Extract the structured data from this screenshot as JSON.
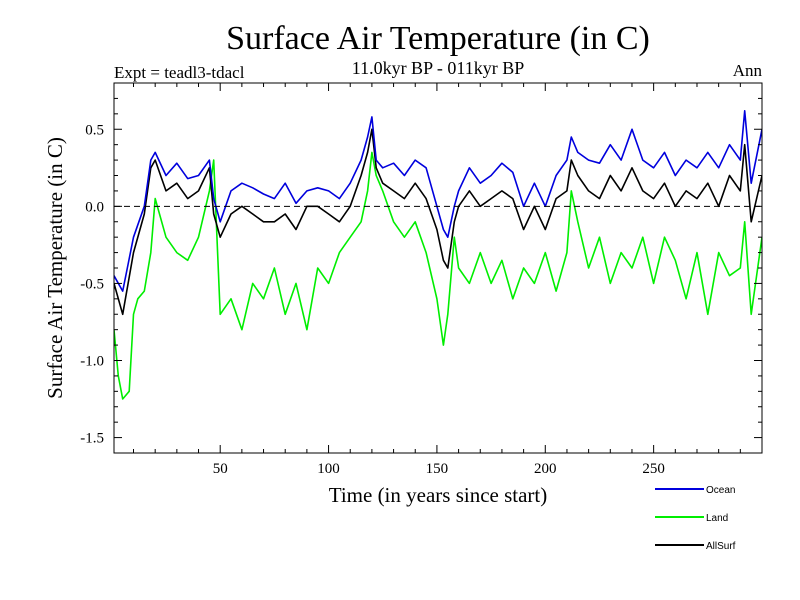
{
  "chart_data": {
    "type": "line",
    "title": "Surface Air Temperature (in C)",
    "subtitle": "11.0kyr BP - 011kyr BP",
    "left_label": "Expt = teadl3-tdacl",
    "right_label": "Ann",
    "xlabel": "Time (in years since start)",
    "ylabel": "Surface Air Temperature (in C)",
    "xlim": [
      1,
      300
    ],
    "ylim": [
      -1.6,
      0.8
    ],
    "xticks": [
      50,
      100,
      150,
      200,
      250
    ],
    "xtick_labels": [
      "50",
      "100",
      "150",
      "200",
      "250"
    ],
    "yticks": [
      0.5,
      0.0,
      -0.5,
      -1.0,
      -1.5
    ],
    "ytick_labels": [
      "0.5",
      "0.0",
      "-0.5",
      "-1.0",
      "-1.5"
    ],
    "reference_line": 0.0,
    "legend_placement": "bottom-right",
    "series": [
      {
        "name": "Ocean",
        "color": "#0000dd",
        "x": [
          1,
          5,
          10,
          15,
          18,
          20,
          25,
          30,
          35,
          40,
          45,
          47,
          50,
          55,
          60,
          65,
          70,
          75,
          80,
          85,
          90,
          95,
          100,
          105,
          110,
          115,
          118,
          120,
          122,
          125,
          130,
          135,
          140,
          145,
          150,
          153,
          155,
          158,
          160,
          165,
          170,
          175,
          180,
          185,
          190,
          195,
          200,
          205,
          210,
          212,
          215,
          220,
          225,
          230,
          235,
          240,
          245,
          250,
          255,
          260,
          265,
          270,
          275,
          280,
          285,
          290,
          292,
          295,
          300
        ],
        "values": [
          -0.45,
          -0.55,
          -0.2,
          0.0,
          0.3,
          0.35,
          0.2,
          0.28,
          0.18,
          0.2,
          0.3,
          0.05,
          -0.1,
          0.1,
          0.15,
          0.12,
          0.08,
          0.05,
          0.15,
          0.02,
          0.1,
          0.12,
          0.1,
          0.05,
          0.15,
          0.3,
          0.45,
          0.58,
          0.3,
          0.25,
          0.28,
          0.2,
          0.3,
          0.25,
          0.0,
          -0.15,
          -0.2,
          0.0,
          0.1,
          0.25,
          0.15,
          0.2,
          0.28,
          0.22,
          0.0,
          0.15,
          0.0,
          0.2,
          0.3,
          0.45,
          0.35,
          0.3,
          0.28,
          0.4,
          0.3,
          0.5,
          0.3,
          0.25,
          0.35,
          0.2,
          0.3,
          0.25,
          0.35,
          0.25,
          0.4,
          0.3,
          0.62,
          0.15,
          0.5
        ]
      },
      {
        "name": "Land",
        "color": "#00ee00",
        "x": [
          1,
          3,
          5,
          8,
          10,
          12,
          15,
          18,
          20,
          25,
          30,
          35,
          40,
          45,
          47,
          50,
          55,
          60,
          65,
          70,
          75,
          80,
          85,
          90,
          95,
          100,
          105,
          110,
          115,
          118,
          120,
          122,
          125,
          130,
          135,
          140,
          145,
          150,
          153,
          155,
          158,
          160,
          165,
          170,
          175,
          180,
          185,
          190,
          195,
          200,
          205,
          210,
          212,
          215,
          220,
          225,
          230,
          235,
          240,
          245,
          250,
          255,
          260,
          265,
          270,
          275,
          280,
          285,
          290,
          292,
          295,
          300
        ],
        "values": [
          -0.8,
          -1.1,
          -1.25,
          -1.2,
          -0.7,
          -0.6,
          -0.55,
          -0.3,
          0.05,
          -0.2,
          -0.3,
          -0.35,
          -0.2,
          0.1,
          0.3,
          -0.7,
          -0.6,
          -0.8,
          -0.5,
          -0.6,
          -0.4,
          -0.7,
          -0.5,
          -0.8,
          -0.4,
          -0.5,
          -0.3,
          -0.2,
          -0.1,
          0.1,
          0.35,
          0.2,
          0.1,
          -0.1,
          -0.2,
          -0.1,
          -0.3,
          -0.6,
          -0.9,
          -0.7,
          -0.2,
          -0.4,
          -0.5,
          -0.3,
          -0.5,
          -0.35,
          -0.6,
          -0.4,
          -0.5,
          -0.3,
          -0.55,
          -0.3,
          0.1,
          -0.1,
          -0.4,
          -0.2,
          -0.5,
          -0.3,
          -0.4,
          -0.2,
          -0.5,
          -0.2,
          -0.35,
          -0.6,
          -0.3,
          -0.7,
          -0.3,
          -0.45,
          -0.4,
          -0.1,
          -0.7,
          -0.2
        ]
      },
      {
        "name": "AllSurf",
        "color": "#000000",
        "x": [
          1,
          5,
          10,
          15,
          18,
          20,
          25,
          30,
          35,
          40,
          45,
          47,
          50,
          55,
          60,
          65,
          70,
          75,
          80,
          85,
          90,
          95,
          100,
          105,
          110,
          115,
          118,
          120,
          122,
          125,
          130,
          135,
          140,
          145,
          150,
          153,
          155,
          158,
          160,
          165,
          170,
          175,
          180,
          185,
          190,
          195,
          200,
          205,
          210,
          212,
          215,
          220,
          225,
          230,
          235,
          240,
          245,
          250,
          255,
          260,
          265,
          270,
          275,
          280,
          285,
          290,
          292,
          295,
          300
        ],
        "values": [
          -0.5,
          -0.7,
          -0.3,
          -0.05,
          0.25,
          0.3,
          0.1,
          0.15,
          0.05,
          0.1,
          0.25,
          -0.05,
          -0.2,
          -0.05,
          0.0,
          -0.05,
          -0.1,
          -0.1,
          -0.05,
          -0.15,
          0.0,
          0.0,
          -0.05,
          -0.1,
          0.0,
          0.2,
          0.35,
          0.5,
          0.25,
          0.15,
          0.1,
          0.05,
          0.15,
          0.05,
          -0.15,
          -0.35,
          -0.4,
          -0.1,
          0.0,
          0.1,
          0.0,
          0.05,
          0.1,
          0.05,
          -0.15,
          0.0,
          -0.15,
          0.05,
          0.1,
          0.3,
          0.2,
          0.1,
          0.05,
          0.2,
          0.1,
          0.25,
          0.1,
          0.05,
          0.15,
          0.0,
          0.1,
          0.05,
          0.15,
          0.0,
          0.2,
          0.1,
          0.4,
          -0.1,
          0.2
        ]
      }
    ]
  }
}
